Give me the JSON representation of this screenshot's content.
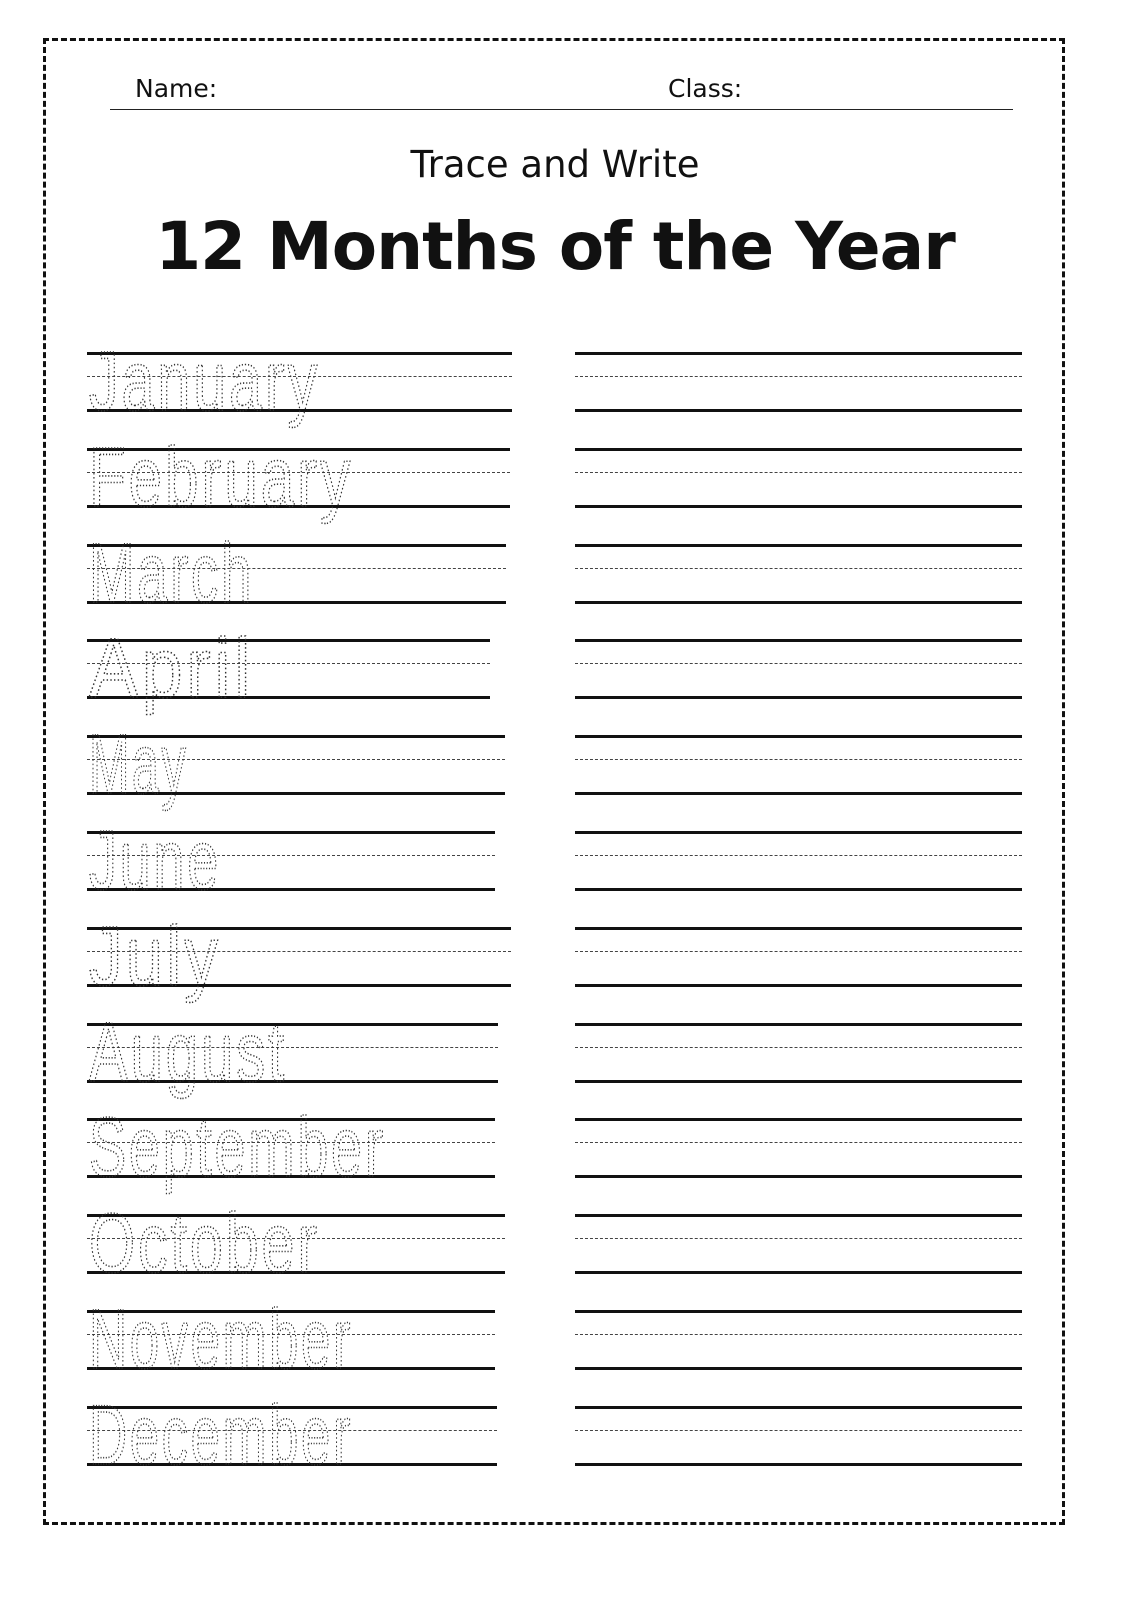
{
  "header": {
    "name_label": "Name:",
    "class_label": "Class:"
  },
  "subtitle": "Trace and Write",
  "title": "12 Months of the Year",
  "months": [
    "January",
    "February",
    "March",
    "April",
    "May",
    "June",
    "July",
    "August",
    "September",
    "October",
    "November",
    "December"
  ]
}
